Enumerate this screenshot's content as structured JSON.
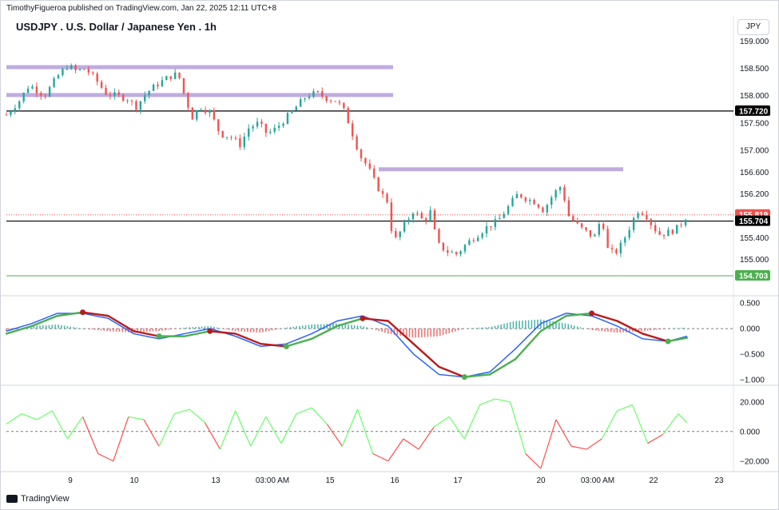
{
  "header": {
    "publisher": "TimothyFigueroa published on TradingView.com, Jan 22, 2025 12:11 UTC+8",
    "title": "USDJPY . U.S. Dollar / Japanese Yen . 1h",
    "currency_button": "JPY"
  },
  "footer": {
    "logo_text": "TradingView"
  },
  "colors": {
    "up": "#26a69a",
    "down": "#ef5350",
    "zone": "#b39ddb",
    "macd": "#2962ff",
    "signal_up": "#4caf50",
    "signal_down": "#b71c1c",
    "osc_up": "#66ff66",
    "osc_down": "#ff4d4d",
    "support": "#4caf50"
  },
  "chart_data": [
    {
      "type": "candlestick",
      "title": "USDJPY . U.S. Dollar / Japanese Yen . 1h",
      "ylim": [
        154.6,
        159.05
      ],
      "yticks": [
        "159.000",
        "158.500",
        "158.000",
        "157.500",
        "157.000",
        "156.600",
        "156.200",
        "155.400",
        "155.000"
      ],
      "xticks": [
        "9",
        "10",
        "13",
        "03:00 AM",
        "15",
        "16",
        "17",
        "20",
        "03:00 AM",
        "22",
        "23"
      ],
      "close_path": [
        [
          0,
          157.65
        ],
        [
          10,
          157.9
        ],
        [
          18,
          158.2
        ],
        [
          30,
          158.0
        ],
        [
          40,
          158.35
        ],
        [
          48,
          158.55
        ],
        [
          55,
          158.45
        ],
        [
          62,
          158.5
        ],
        [
          70,
          158.3
        ],
        [
          78,
          158.05
        ],
        [
          86,
          158.0
        ],
        [
          95,
          157.95
        ],
        [
          102,
          157.8
        ],
        [
          110,
          158.05
        ],
        [
          118,
          158.2
        ],
        [
          128,
          158.35
        ],
        [
          135,
          158.4
        ],
        [
          140,
          158.0
        ],
        [
          146,
          157.6
        ],
        [
          152,
          157.8
        ],
        [
          160,
          157.7
        ],
        [
          168,
          157.3
        ],
        [
          176,
          157.25
        ],
        [
          184,
          157.1
        ],
        [
          190,
          157.4
        ],
        [
          198,
          157.5
        ],
        [
          205,
          157.3
        ],
        [
          212,
          157.4
        ],
        [
          220,
          157.6
        ],
        [
          228,
          157.8
        ],
        [
          236,
          158.0
        ],
        [
          244,
          158.05
        ],
        [
          252,
          157.95
        ],
        [
          260,
          157.9
        ],
        [
          266,
          157.7
        ],
        [
          272,
          157.3
        ],
        [
          278,
          156.9
        ],
        [
          284,
          156.7
        ],
        [
          290,
          156.4
        ],
        [
          295,
          156.2
        ],
        [
          300,
          156.05
        ],
        [
          304,
          155.3
        ],
        [
          312,
          155.6
        ],
        [
          320,
          155.9
        ],
        [
          328,
          155.7
        ],
        [
          334,
          155.9
        ],
        [
          338,
          155.3
        ],
        [
          346,
          155.15
        ],
        [
          354,
          155.1
        ],
        [
          362,
          155.3
        ],
        [
          370,
          155.45
        ],
        [
          378,
          155.6
        ],
        [
          386,
          155.7
        ],
        [
          394,
          155.95
        ],
        [
          402,
          156.2
        ],
        [
          410,
          156.1
        ],
        [
          416,
          156.05
        ],
        [
          422,
          155.9
        ],
        [
          430,
          156.2
        ],
        [
          436,
          156.35
        ],
        [
          442,
          155.8
        ],
        [
          450,
          155.6
        ],
        [
          456,
          155.5
        ],
        [
          462,
          155.4
        ],
        [
          468,
          155.8
        ],
        [
          472,
          155.2
        ],
        [
          478,
          155.1
        ],
        [
          484,
          155.3
        ],
        [
          490,
          155.6
        ],
        [
          496,
          155.9
        ],
        [
          502,
          155.85
        ],
        [
          508,
          155.6
        ],
        [
          514,
          155.45
        ],
        [
          520,
          155.5
        ],
        [
          526,
          155.55
        ],
        [
          532,
          155.7
        ],
        [
          535,
          155.82
        ]
      ],
      "resistance_zones": [
        158.53,
        158.02,
        156.66
      ],
      "lines": {
        "last_price": 155.819,
        "black_upper": 157.72,
        "black_lower": 155.704,
        "support": 154.703
      },
      "price_labels": [
        {
          "value": 157.72,
          "text": "157.720",
          "color": "#000000"
        },
        {
          "value": 155.819,
          "text": "155.819",
          "color": "#ef5350"
        },
        {
          "value": 155.704,
          "text": "155.704",
          "color": "#000000"
        },
        {
          "value": 154.703,
          "text": "154.703",
          "color": "#4caf50"
        }
      ]
    },
    {
      "type": "line",
      "name": "MACD",
      "ylim": [
        -1.05,
        0.55
      ],
      "yticks": [
        "0.500",
        "0.000",
        "−0.500",
        "−1.000"
      ],
      "x": [
        0,
        20,
        40,
        60,
        80,
        100,
        120,
        140,
        160,
        180,
        200,
        220,
        240,
        260,
        280,
        300,
        320,
        340,
        360,
        380,
        400,
        420,
        440,
        460,
        480,
        500,
        520,
        535
      ],
      "series": [
        {
          "role": "macd",
          "values": [
            -0.05,
            0.1,
            0.3,
            0.3,
            0.2,
            -0.1,
            -0.2,
            -0.1,
            0.0,
            -0.15,
            -0.35,
            -0.3,
            -0.1,
            0.15,
            0.25,
            0.05,
            -0.5,
            -0.9,
            -0.95,
            -0.85,
            -0.4,
            0.1,
            0.3,
            0.25,
            0.05,
            -0.2,
            -0.25,
            -0.15
          ]
        },
        {
          "role": "signal",
          "values": [
            -0.1,
            0.05,
            0.25,
            0.32,
            0.25,
            -0.05,
            -0.15,
            -0.15,
            -0.05,
            -0.1,
            -0.3,
            -0.35,
            -0.2,
            0.05,
            0.2,
            0.15,
            -0.3,
            -0.75,
            -0.95,
            -0.9,
            -0.6,
            -0.05,
            0.25,
            0.3,
            0.15,
            -0.1,
            -0.25,
            -0.18
          ]
        }
      ],
      "histogram": [
        -0.05,
        0.05,
        0.08,
        0.0,
        -0.05,
        -0.08,
        -0.05,
        0.02,
        0.05,
        -0.05,
        -0.08,
        0.02,
        0.08,
        0.1,
        0.05,
        -0.1,
        -0.18,
        -0.15,
        0.0,
        0.03,
        0.15,
        0.18,
        0.1,
        -0.03,
        -0.08,
        -0.05,
        0.0,
        0.02
      ]
    },
    {
      "type": "line",
      "name": "oscillator",
      "ylim": [
        -25,
        28
      ],
      "yticks": [
        "20.000",
        "0.000",
        "−20.000"
      ],
      "x": [
        0,
        12,
        24,
        36,
        48,
        60,
        72,
        84,
        96,
        108,
        120,
        132,
        144,
        156,
        168,
        180,
        192,
        204,
        216,
        228,
        240,
        252,
        264,
        276,
        288,
        300,
        312,
        324,
        336,
        348,
        360,
        372,
        384,
        396,
        408,
        420,
        432,
        444,
        456,
        468,
        480,
        492,
        504,
        516,
        528,
        535
      ],
      "values": [
        5,
        12,
        8,
        14,
        -5,
        10,
        -15,
        -20,
        10,
        8,
        -10,
        12,
        15,
        6,
        -12,
        14,
        -10,
        10,
        -8,
        12,
        16,
        5,
        -10,
        15,
        -15,
        -20,
        -5,
        -12,
        3,
        10,
        -5,
        18,
        22,
        20,
        -15,
        -25,
        8,
        -10,
        -12,
        -5,
        14,
        18,
        -8,
        -2,
        12,
        6
      ]
    }
  ]
}
